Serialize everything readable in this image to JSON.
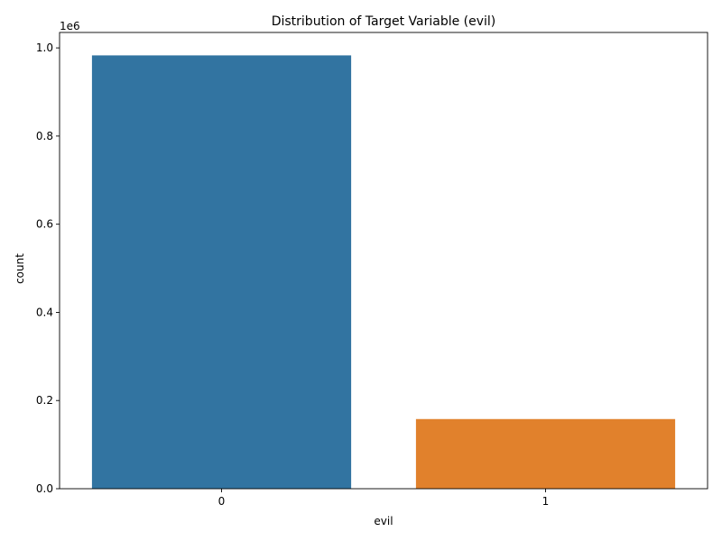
{
  "chart_data": {
    "type": "bar",
    "title": "Distribution of Target Variable (evil)",
    "xlabel": "evil",
    "ylabel": "count",
    "categories": [
      "0",
      "1"
    ],
    "values": [
      983000,
      158000
    ],
    "colors": [
      "#3274a1",
      "#e1812c"
    ],
    "ylim": [
      0,
      1035000
    ],
    "yticks": [
      0,
      200000,
      400000,
      600000,
      800000,
      1000000
    ],
    "ytick_labels": [
      "0.0",
      "0.2",
      "0.4",
      "0.6",
      "0.8",
      "1.0"
    ],
    "offset_text": "1e6",
    "grid": false,
    "legend": "none"
  }
}
